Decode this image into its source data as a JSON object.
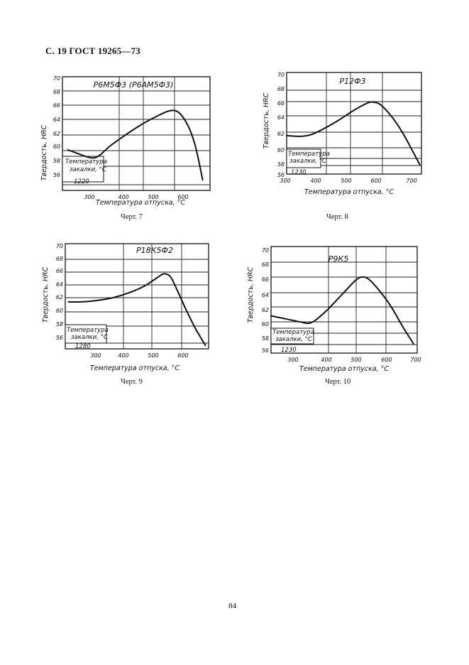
{
  "header": "С. 19 ГОСТ 19265—73",
  "page_number": "84",
  "charts": [
    {
      "title": "Р6М5Ф3 (Р6АМ5Ф3)",
      "ylabel": "Твердость, HRC",
      "xlabel": "Температура отпуска, °С",
      "legend_label": [
        "Температура",
        "закалки, °С"
      ],
      "legend_value": "1220",
      "caption": "Черт. 7",
      "y_ticks": [
        "70",
        "68",
        "66",
        "64",
        "62",
        "60",
        "58",
        "56"
      ],
      "x_ticks": [
        "300",
        "400",
        "500",
        "600"
      ]
    },
    {
      "title": "Р12Ф3",
      "ylabel": "Твердость, HRC",
      "xlabel": "Температура отпуска, °С",
      "legend_label": [
        "Температура",
        "закалки, °С"
      ],
      "legend_value": "1230",
      "caption": "Черт. 8",
      "y_ticks": [
        "70",
        "68",
        "66",
        "64",
        "62",
        "60",
        "58",
        "56"
      ],
      "x_ticks": [
        "300",
        "400",
        "500",
        "600",
        "700"
      ]
    },
    {
      "title": "Р18К5Ф2",
      "ylabel": "Твердость, HRC",
      "xlabel": "Температура отпуска, °С",
      "legend_label": [
        "Температура",
        "закалки, °С"
      ],
      "legend_value": "1280",
      "caption": "Черт. 9",
      "y_ticks": [
        "70",
        "68",
        "66",
        "64",
        "62",
        "60",
        "58",
        "56"
      ],
      "x_ticks": [
        "300",
        "400",
        "500",
        "600"
      ]
    },
    {
      "title": "Р9К5",
      "ylabel": "Твердость, HRC",
      "xlabel": "Температура отпуска, °С",
      "legend_label": [
        "Температура",
        "закалки, °С"
      ],
      "legend_value": "1230",
      "caption": "Черт. 10",
      "y_ticks": [
        "70",
        "68",
        "66",
        "64",
        "62",
        "60",
        "58",
        "56"
      ],
      "x_ticks": [
        "300",
        "400",
        "500",
        "600",
        "700"
      ]
    }
  ],
  "chart_data": [
    {
      "type": "line",
      "title": "Р6М5Ф3 (Р6АМ5Ф3)",
      "xlabel": "Температура отпуска, °С",
      "ylabel": "Твердость, HRC",
      "xlim": [
        250,
        650
      ],
      "ylim": [
        56,
        70
      ],
      "x": [
        265,
        300,
        330,
        350,
        380,
        420,
        460,
        500,
        540,
        565,
        590,
        610,
        630
      ],
      "y": [
        61.0,
        60.4,
        60.0,
        60.3,
        61.5,
        62.8,
        64.0,
        65.0,
        65.8,
        65.6,
        64.0,
        61.5,
        57.3
      ]
    },
    {
      "type": "line",
      "title": "Р12Ф3",
      "xlabel": "Температура отпуска, °С",
      "ylabel": "Твердость, HRC",
      "xlim": [
        300,
        700
      ],
      "ylim": [
        56,
        70
      ],
      "x": [
        300,
        340,
        370,
        400,
        450,
        500,
        540,
        560,
        580,
        610,
        640,
        670,
        695
      ],
      "y": [
        61.3,
        61.2,
        61.4,
        62.0,
        63.3,
        64.8,
        65.8,
        65.9,
        65.5,
        64.0,
        62.0,
        59.5,
        57.3
      ]
    },
    {
      "type": "line",
      "title": "Р18К5Ф2",
      "xlabel": "Температура отпуска, °С",
      "ylabel": "Твердость, HRC",
      "xlim": [
        250,
        700
      ],
      "ylim": [
        55,
        70
      ],
      "x": [
        260,
        300,
        350,
        400,
        450,
        500,
        540,
        560,
        580,
        600,
        630,
        660,
        690
      ],
      "y": [
        61.7,
        61.7,
        61.9,
        62.3,
        63.0,
        64.0,
        65.2,
        65.7,
        65.3,
        63.5,
        60.5,
        57.8,
        55.5
      ]
    },
    {
      "type": "line",
      "title": "Р9К5",
      "xlabel": "Температура отпуска, °С",
      "ylabel": "Твердость, HRC",
      "xlim": [
        300,
        700
      ],
      "ylim": [
        56,
        70
      ],
      "x": [
        300,
        340,
        380,
        410,
        450,
        500,
        530,
        550,
        570,
        600,
        630,
        660,
        690
      ],
      "y": [
        60.9,
        60.5,
        60.1,
        60.0,
        61.5,
        64.0,
        65.5,
        66.0,
        65.6,
        64.0,
        62.0,
        59.5,
        57.2
      ]
    }
  ]
}
